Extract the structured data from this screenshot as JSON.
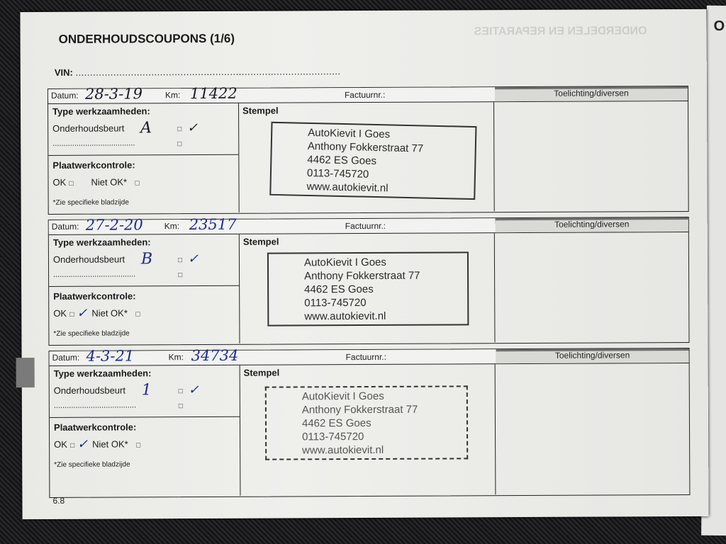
{
  "page": {
    "title": "ONDERHOUDSCOUPONS (1/6)",
    "vin_label": "VIN:",
    "vin_value": "...........................................................................................",
    "page_number": "6.8",
    "facing_page_title": "ONDERDELEN EN REPARATIES",
    "right_page_title": "O"
  },
  "labels": {
    "datum": "Datum:",
    "km": "Km:",
    "factuurnr": "Factuurnr.:",
    "toelichting": "Toelichting/diversen",
    "type": "Type werkzaamheden:",
    "onderhoudsbeurt": "Onderhoudsbeurt",
    "dotted": "......................................",
    "plaatwerk": "Plaatwerkcontrole:",
    "ok": "OK",
    "niet_ok": "Niet OK*",
    "zie": "*Zie specifieke bladzijde",
    "stempel": "Stempel",
    "checkbox": "□"
  },
  "coupons": [
    {
      "datum": "28-3-19",
      "km": "11422",
      "service_type": "A",
      "service_check": "✓",
      "ok_mark": "",
      "ink": "#1a1a2a",
      "stamp": [
        "AutoKievit I Goes",
        "Anthony Fokkerstraat 77",
        "4462 ES  Goes",
        "0113-745720",
        "www.autokievit.nl"
      ]
    },
    {
      "datum": "27-2-20",
      "km": "23517",
      "service_type": "B",
      "service_check": "✓",
      "ok_mark": "✓",
      "ink": "#1d2b8a",
      "stamp": [
        "AutoKievit I Goes",
        "Anthony Fokkerstraat 77",
        "4462 ES  Goes",
        "0113-745720",
        "www.autokievit.nl"
      ]
    },
    {
      "datum": "4-3-21",
      "km": "34734",
      "service_type": "1",
      "service_check": "✓",
      "ok_mark": "✓",
      "ink": "#1d2b8a",
      "stamp": [
        "AutoKievit I Goes",
        "Anthony Fokkerstraat 77",
        "4462 ES  Goes",
        "0113-745720",
        "www.autokievit.nl"
      ]
    }
  ]
}
